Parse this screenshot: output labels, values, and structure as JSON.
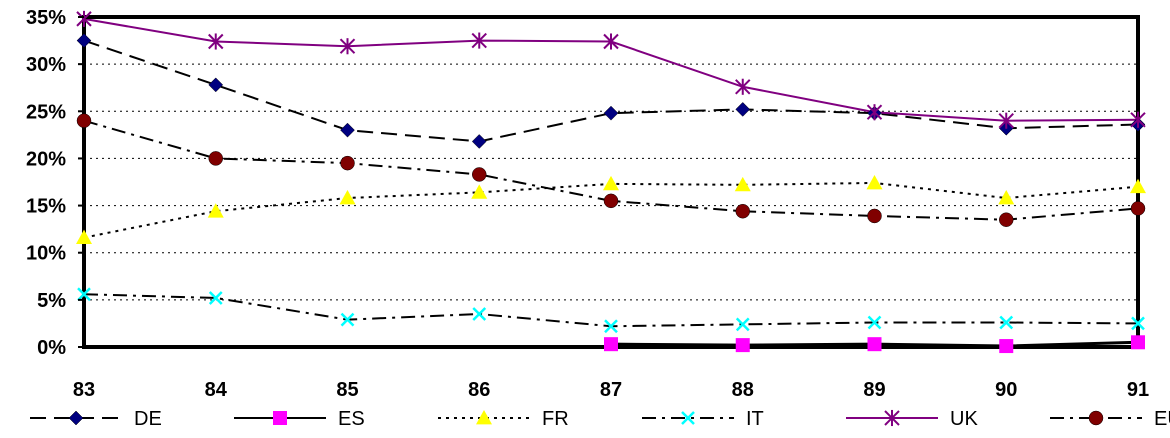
{
  "chart_data": {
    "type": "line",
    "title": "",
    "xlabel": "",
    "ylabel": "",
    "categories": [
      "83",
      "84",
      "85",
      "86",
      "87",
      "88",
      "89",
      "90",
      "91"
    ],
    "ylim": [
      0,
      35
    ],
    "yticks": [
      0,
      5,
      10,
      15,
      20,
      25,
      30,
      35
    ],
    "ytick_labels": [
      "0%",
      "5%",
      "10%",
      "15%",
      "20%",
      "25%",
      "30%",
      "35%"
    ],
    "grid": "horizontal dotted",
    "legend_position": "bottom",
    "series": [
      {
        "name": "DE",
        "color": "#000000",
        "marker_color": "#000080",
        "marker": "diamond",
        "line_style": "long-dash",
        "values": [
          32.5,
          27.8,
          23.0,
          21.8,
          24.8,
          25.2,
          24.8,
          23.2,
          23.6
        ]
      },
      {
        "name": "ES",
        "color": "#000000",
        "marker_color": "#FF00FF",
        "marker": "square",
        "line_style": "solid",
        "values": [
          null,
          null,
          null,
          null,
          0.3,
          0.2,
          0.3,
          0.1,
          0.5
        ]
      },
      {
        "name": "FR",
        "color": "#000000",
        "marker_color": "#FFFF00",
        "marker": "triangle",
        "line_style": "dotted",
        "values": [
          11.6,
          14.4,
          15.8,
          16.4,
          17.3,
          17.2,
          17.4,
          15.8,
          17.0
        ]
      },
      {
        "name": "IT",
        "color": "#000000",
        "marker_color": "#00FFFF",
        "marker": "x",
        "line_style": "dash-dot",
        "values": [
          5.6,
          5.2,
          2.9,
          3.5,
          2.2,
          2.4,
          2.6,
          2.6,
          2.5
        ]
      },
      {
        "name": "UK",
        "color": "#800080",
        "marker_color": "#800080",
        "marker": "star",
        "line_style": "solid",
        "values": [
          34.8,
          32.4,
          31.9,
          32.5,
          32.4,
          27.6,
          24.9,
          24.0,
          24.1
        ]
      },
      {
        "name": "EU",
        "color": "#000000",
        "marker_color": "#800000",
        "marker": "circle",
        "line_style": "dash-dot",
        "values": [
          24.0,
          20.0,
          19.5,
          18.3,
          15.5,
          14.4,
          13.9,
          13.5,
          14.7
        ]
      }
    ]
  }
}
